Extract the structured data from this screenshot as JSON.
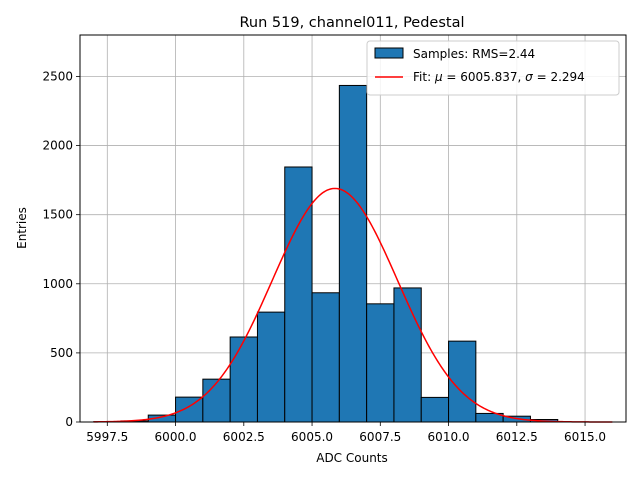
{
  "chart_data": {
    "type": "bar",
    "title": "Run 519, channel011, Pedestal",
    "xlabel": "ADC Counts",
    "ylabel": "Entries",
    "xlim": [
      5996.5,
      6016.5
    ],
    "ylim": [
      0,
      2800
    ],
    "grid": true,
    "legend_position": "top-right",
    "x_ticks": [
      5997.5,
      6000.0,
      6002.5,
      6005.0,
      6007.5,
      6010.0,
      6012.5,
      6015.0
    ],
    "x_tick_labels": [
      "5997.5",
      "6000.0",
      "6002.5",
      "6005.0",
      "6007.5",
      "6010.0",
      "6012.5",
      "6015.0"
    ],
    "y_ticks": [
      0,
      500,
      1000,
      1500,
      2000,
      2500
    ],
    "y_tick_labels": [
      "0",
      "500",
      "1000",
      "1500",
      "2000",
      "2500"
    ],
    "bin_edges": [
      5997,
      5998,
      5999,
      6000,
      6001,
      6002,
      6003,
      6004,
      6005,
      6006,
      6007,
      6008,
      6009,
      6010,
      6011,
      6012,
      6013,
      6014
    ],
    "values": [
      2,
      8,
      50,
      180,
      310,
      615,
      795,
      1845,
      935,
      2435,
      855,
      970,
      178,
      585,
      62,
      42,
      18
    ],
    "bar_color": "#1f77b4",
    "fit": {
      "mu": 6005.837,
      "sigma": 2.294,
      "amplitude": 1690,
      "x_range": [
        5997,
        6016
      ],
      "color": "#ff0000"
    },
    "legend": [
      {
        "label": "Samples: RMS=2.44",
        "kind": "patch"
      },
      {
        "label_prefix": "Fit: ",
        "mu_symbol": "μ",
        "mu_text": " = 6005.837, ",
        "sigma_symbol": "σ",
        "sigma_text": " = 2.294",
        "kind": "line"
      }
    ]
  }
}
